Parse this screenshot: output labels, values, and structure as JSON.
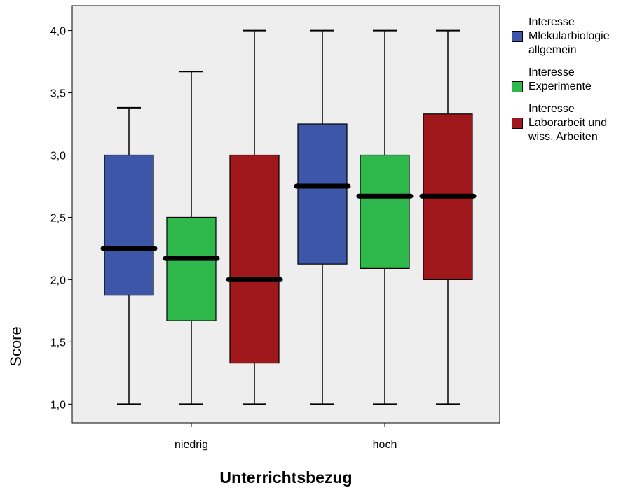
{
  "chart_data": {
    "type": "boxplot",
    "xlabel": "Unterrichtsbezug",
    "ylabel": "Score",
    "categories": [
      "niedrig",
      "hoch"
    ],
    "ylim": [
      0.85,
      4.2
    ],
    "yticks": [
      "1,0",
      "1,5",
      "2,0",
      "2,5",
      "3,0",
      "3,5",
      "4,0"
    ],
    "ytick_values": [
      1.0,
      1.5,
      2.0,
      2.5,
      3.0,
      3.5,
      4.0
    ],
    "plot_background": "#eeeeee",
    "legend_position": "right",
    "series": [
      {
        "name": "Interesse\nMlekularbiologie\nallgemein",
        "color": "#3d56a8",
        "boxes": [
          {
            "category": "niedrig",
            "min": 1.0,
            "q1": 1.875,
            "median": 2.25,
            "q3": 3.0,
            "max": 3.38
          },
          {
            "category": "hoch",
            "min": 1.0,
            "q1": 2.125,
            "median": 2.75,
            "q3": 3.25,
            "max": 4.0
          }
        ]
      },
      {
        "name": "Interesse\nExperimente",
        "color": "#2fb84b",
        "boxes": [
          {
            "category": "niedrig",
            "min": 1.0,
            "q1": 1.67,
            "median": 2.17,
            "q3": 2.5,
            "max": 3.67
          },
          {
            "category": "hoch",
            "min": 1.0,
            "q1": 2.09,
            "median": 2.67,
            "q3": 3.0,
            "max": 4.0
          }
        ]
      },
      {
        "name": "Interesse\nLaborarbeit und\nwiss. Arbeiten",
        "color": "#a0181c",
        "boxes": [
          {
            "category": "niedrig",
            "min": 1.0,
            "q1": 1.33,
            "median": 2.0,
            "q3": 3.0,
            "max": 4.0
          },
          {
            "category": "hoch",
            "min": 1.0,
            "q1": 2.0,
            "median": 2.67,
            "q3": 3.33,
            "max": 4.0
          }
        ]
      }
    ]
  }
}
